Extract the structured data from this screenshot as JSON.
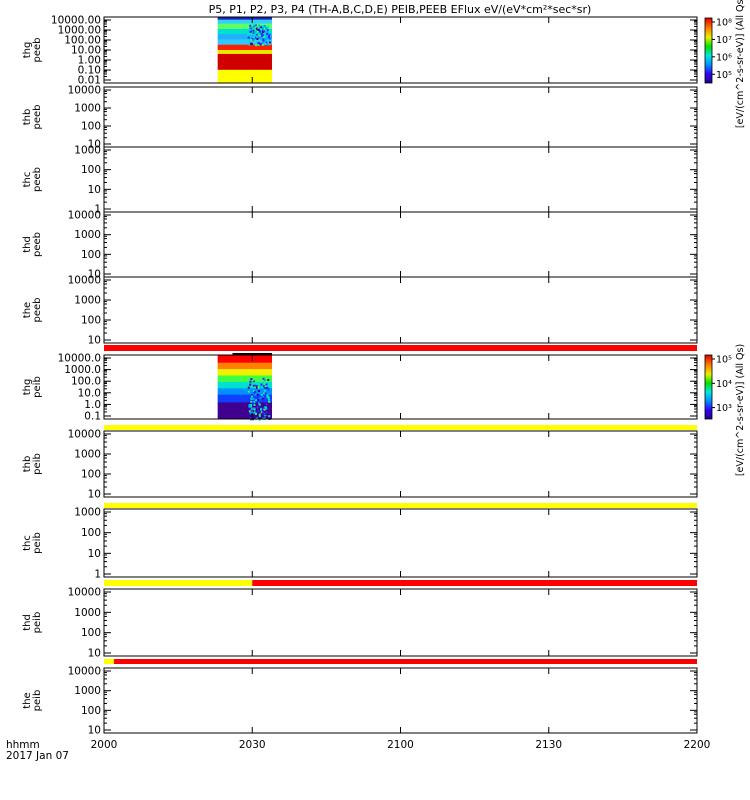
{
  "title": "P5, P1, P2, P3, P4 (TH-A,B,C,D,E) PEIB,PEEB EFlux eV/(eV*cm²*sec*sr)",
  "x_axis": {
    "label_line1": "hhmm",
    "label_line2": "2017 Jan 07",
    "ticks": [
      "2000",
      "2030",
      "2100",
      "2130",
      "2200"
    ]
  },
  "colorbars": [
    {
      "label": "[eV/(cm^2-s-sr-eV)] (All Qs)",
      "ticks": [
        "10⁸",
        "10⁷",
        "10⁶",
        "10⁵"
      ]
    },
    {
      "label": "[eV/(cm^2-s-sr-eV)] (All Qs)",
      "ticks": [
        "10⁵",
        "10⁴",
        "10³"
      ]
    }
  ],
  "chart_data": {
    "type": "heatmap",
    "x_unit": "hhmm",
    "x_range": [
      "2000",
      "2200"
    ],
    "panels": [
      {
        "label": "thg\npeeb",
        "yticks": [
          "10000.00",
          "1000.00",
          "100.00",
          "10.00",
          "1.00",
          "0.10",
          "0.01"
        ],
        "has_spectrogram": true,
        "data_interval": [
          "2023",
          "2034"
        ]
      },
      {
        "label": "thb\npeeb",
        "yticks": [
          "10000",
          "1000",
          "100",
          "10"
        ],
        "has_spectrogram": false
      },
      {
        "label": "thc\npeeb",
        "yticks": [
          "1000",
          "100",
          "10",
          "1"
        ],
        "has_spectrogram": false
      },
      {
        "label": "thd\npeeb",
        "yticks": [
          "10000",
          "1000",
          "100",
          "10"
        ],
        "has_spectrogram": false
      },
      {
        "label": "the\npeeb",
        "yticks": [
          "10000",
          "1000",
          "100",
          "10"
        ],
        "has_spectrogram": false
      },
      {
        "label": "thg\npeib",
        "yticks": [
          "10000.0",
          "1000.0",
          "100.0",
          "10.0",
          "1.0",
          "0.1"
        ],
        "has_spectrogram": true,
        "data_interval": [
          "2023",
          "2034"
        ]
      },
      {
        "label": "thb\npeib",
        "yticks": [
          "10000",
          "1000",
          "100",
          "10"
        ],
        "has_spectrogram": false
      },
      {
        "label": "thc\npeib",
        "yticks": [
          "1000",
          "100",
          "10",
          "1"
        ],
        "has_spectrogram": false
      },
      {
        "label": "thd\npeib",
        "yticks": [
          "10000",
          "1000",
          "100",
          "10"
        ],
        "has_spectrogram": false
      },
      {
        "label": "the\npeib",
        "yticks": [
          "10000",
          "1000",
          "100",
          "10"
        ],
        "has_spectrogram": false
      }
    ],
    "status_bars": [
      {
        "segments": [
          {
            "from": "2000",
            "to": "2200",
            "color": "#ff0000"
          }
        ]
      },
      {
        "segments": [
          {
            "from": "2000",
            "to": "2200",
            "color": "#ffff00"
          }
        ]
      },
      {
        "segments": [
          {
            "from": "2000",
            "to": "2200",
            "color": "#ffff00"
          }
        ]
      },
      {
        "segments": [
          {
            "from": "2000",
            "to": "2030",
            "color": "#ffff00"
          },
          {
            "from": "2030",
            "to": "2200",
            "color": "#ff0000"
          }
        ]
      },
      {
        "segments": [
          {
            "from": "2000",
            "to": "2002",
            "color": "#ffff00"
          },
          {
            "from": "2002",
            "to": "2200",
            "color": "#ff0000"
          }
        ]
      }
    ]
  }
}
